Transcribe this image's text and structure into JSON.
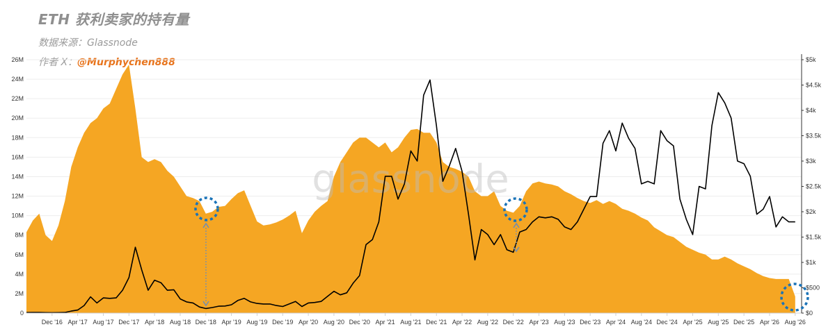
{
  "header": {
    "title": "ETH 获利卖家的持有量",
    "source": "数据来源：Glassnode",
    "author_prefix": "作者 X：",
    "author_handle": "@Murphychen888"
  },
  "watermark": "glassnode",
  "colors": {
    "area": "#f5a623",
    "price_line": "#000000",
    "marker": "#1a73b8",
    "arrow": "#7a8fa8"
  },
  "chart_data": {
    "type": "area",
    "x_ticks": [
      "Dec '16",
      "Apr '17",
      "Aug '17",
      "Dec '17",
      "Apr '18",
      "Aug '18",
      "Dec '18",
      "Apr '19",
      "Aug '19",
      "Dec '19",
      "Apr '20",
      "Aug '20",
      "Dec '20",
      "Apr '21",
      "Aug '21",
      "Dec '21",
      "Apr '22",
      "Aug '22",
      "Dec '22",
      "Apr '23",
      "Aug '23",
      "Dec '23",
      "Apr '24",
      "Aug '24",
      "Dec '24",
      "Apr '25",
      "Aug '25",
      "Dec '25",
      "Apr '26",
      "Aug '26"
    ],
    "y_left_ticks": [
      "0",
      "2M",
      "4M",
      "6M",
      "8M",
      "10M",
      "12M",
      "14M",
      "16M",
      "18M",
      "20M",
      "22M",
      "24M",
      "26M"
    ],
    "y_right_ticks": [
      "$0",
      "$500",
      "$1k",
      "$1.5k",
      "$2k",
      "$2.5k",
      "$3k",
      "$3.5k",
      "$4k",
      "$4.5k",
      "$5k"
    ],
    "ylim_left": [
      0,
      26000000
    ],
    "ylim_right": [
      0,
      5000
    ],
    "series": [
      {
        "kind": "area",
        "axis": "left",
        "points": [
          [
            "2016-08",
            8.3
          ],
          [
            "2016-09",
            9.5
          ],
          [
            "2016-10",
            10.2
          ],
          [
            "2016-11",
            8.0
          ],
          [
            "2016-12",
            7.4
          ],
          [
            "2017-01",
            9.0
          ],
          [
            "2017-02",
            11.5
          ],
          [
            "2017-03",
            15.0
          ],
          [
            "2017-04",
            17.0
          ],
          [
            "2017-05",
            18.5
          ],
          [
            "2017-06",
            19.5
          ],
          [
            "2017-07",
            20.0
          ],
          [
            "2017-08",
            21.0
          ],
          [
            "2017-09",
            21.5
          ],
          [
            "2017-10",
            23.0
          ],
          [
            "2017-11",
            24.5
          ],
          [
            "2017-12",
            25.5
          ],
          [
            "2018-01",
            21.0
          ],
          [
            "2018-02",
            16.0
          ],
          [
            "2018-03",
            15.5
          ],
          [
            "2018-04",
            15.8
          ],
          [
            "2018-05",
            15.5
          ],
          [
            "2018-06",
            14.6
          ],
          [
            "2018-07",
            14.0
          ],
          [
            "2018-08",
            13.0
          ],
          [
            "2018-09",
            12.0
          ],
          [
            "2018-10",
            11.8
          ],
          [
            "2018-11",
            11.5
          ],
          [
            "2018-12",
            10.2
          ],
          [
            "2019-01",
            10.4
          ],
          [
            "2019-02",
            10.9
          ],
          [
            "2019-03",
            11.0
          ],
          [
            "2019-04",
            11.7
          ],
          [
            "2019-05",
            12.3
          ],
          [
            "2019-06",
            12.6
          ],
          [
            "2019-07",
            11.0
          ],
          [
            "2019-08",
            9.4
          ],
          [
            "2019-09",
            9.0
          ],
          [
            "2019-10",
            9.1
          ],
          [
            "2019-11",
            9.3
          ],
          [
            "2019-12",
            9.6
          ],
          [
            "2020-01",
            10.0
          ],
          [
            "2020-02",
            10.5
          ],
          [
            "2020-03",
            8.2
          ],
          [
            "2020-04",
            9.5
          ],
          [
            "2020-05",
            10.4
          ],
          [
            "2020-06",
            11.0
          ],
          [
            "2020-07",
            11.5
          ],
          [
            "2020-08",
            14.0
          ],
          [
            "2020-09",
            15.5
          ],
          [
            "2020-10",
            16.5
          ],
          [
            "2020-11",
            17.5
          ],
          [
            "2020-12",
            18.0
          ],
          [
            "2021-01",
            18.0
          ],
          [
            "2021-02",
            17.5
          ],
          [
            "2021-03",
            17.0
          ],
          [
            "2021-04",
            17.5
          ],
          [
            "2021-05",
            16.5
          ],
          [
            "2021-06",
            17.0
          ],
          [
            "2021-07",
            18.0
          ],
          [
            "2021-08",
            18.8
          ],
          [
            "2021-09",
            18.9
          ],
          [
            "2021-10",
            18.5
          ],
          [
            "2021-11",
            18.5
          ],
          [
            "2021-12",
            17.5
          ],
          [
            "2022-01",
            15.5
          ],
          [
            "2022-02",
            15.0
          ],
          [
            "2022-03",
            14.8
          ],
          [
            "2022-04",
            14.5
          ],
          [
            "2022-05",
            14.0
          ],
          [
            "2022-06",
            12.5
          ],
          [
            "2022-07",
            12.0
          ],
          [
            "2022-08",
            12.0
          ],
          [
            "2022-09",
            12.5
          ],
          [
            "2022-10",
            11.0
          ],
          [
            "2022-11",
            10.5
          ],
          [
            "2022-12",
            10.3
          ],
          [
            "2023-01",
            11.0
          ],
          [
            "2023-02",
            12.5
          ],
          [
            "2023-03",
            13.3
          ],
          [
            "2023-04",
            13.5
          ],
          [
            "2023-05",
            13.3
          ],
          [
            "2023-06",
            13.2
          ],
          [
            "2023-07",
            13.0
          ],
          [
            "2023-08",
            12.5
          ],
          [
            "2023-09",
            12.2
          ],
          [
            "2023-10",
            11.8
          ],
          [
            "2023-11",
            11.5
          ],
          [
            "2023-12",
            11.3
          ],
          [
            "2024-01",
            11.6
          ],
          [
            "2024-02",
            11.2
          ],
          [
            "2024-03",
            11.5
          ],
          [
            "2024-04",
            11.2
          ],
          [
            "2024-05",
            10.7
          ],
          [
            "2024-06",
            10.5
          ],
          [
            "2024-07",
            10.2
          ],
          [
            "2024-08",
            9.8
          ],
          [
            "2024-09",
            9.5
          ],
          [
            "2024-10",
            8.8
          ],
          [
            "2024-11",
            8.4
          ],
          [
            "2024-12",
            8.0
          ],
          [
            "2025-01",
            7.8
          ],
          [
            "2025-02",
            7.3
          ],
          [
            "2025-03",
            6.8
          ],
          [
            "2025-04",
            6.5
          ],
          [
            "2025-05",
            6.2
          ],
          [
            "2025-06",
            6.0
          ],
          [
            "2025-07",
            5.5
          ],
          [
            "2025-08",
            5.5
          ],
          [
            "2025-09",
            5.8
          ],
          [
            "2025-10",
            5.5
          ],
          [
            "2025-11",
            5.1
          ],
          [
            "2025-12",
            4.8
          ],
          [
            "2026-01",
            4.5
          ],
          [
            "2026-02",
            4.1
          ],
          [
            "2026-03",
            3.8
          ],
          [
            "2026-04",
            3.6
          ],
          [
            "2026-05",
            3.5
          ],
          [
            "2026-06",
            3.5
          ],
          [
            "2026-07",
            3.5
          ],
          [
            "2026-08",
            1.7
          ]
        ]
      },
      {
        "kind": "line",
        "axis": "right",
        "points": [
          [
            "2016-08",
            11
          ],
          [
            "2016-09",
            12
          ],
          [
            "2016-10",
            12
          ],
          [
            "2016-11",
            9
          ],
          [
            "2016-12",
            8
          ],
          [
            "2017-01",
            10
          ],
          [
            "2017-02",
            13
          ],
          [
            "2017-03",
            40
          ],
          [
            "2017-04",
            60
          ],
          [
            "2017-05",
            150
          ],
          [
            "2017-06",
            320
          ],
          [
            "2017-07",
            200
          ],
          [
            "2017-08",
            300
          ],
          [
            "2017-09",
            290
          ],
          [
            "2017-10",
            300
          ],
          [
            "2017-11",
            450
          ],
          [
            "2017-12",
            700
          ],
          [
            "2018-01",
            1300
          ],
          [
            "2018-02",
            850
          ],
          [
            "2018-03",
            450
          ],
          [
            "2018-04",
            650
          ],
          [
            "2018-05",
            600
          ],
          [
            "2018-06",
            450
          ],
          [
            "2018-07",
            460
          ],
          [
            "2018-08",
            280
          ],
          [
            "2018-09",
            220
          ],
          [
            "2018-10",
            200
          ],
          [
            "2018-11",
            120
          ],
          [
            "2018-12",
            90
          ],
          [
            "2019-01",
            110
          ],
          [
            "2019-02",
            135
          ],
          [
            "2019-03",
            140
          ],
          [
            "2019-04",
            165
          ],
          [
            "2019-05",
            250
          ],
          [
            "2019-06",
            290
          ],
          [
            "2019-07",
            220
          ],
          [
            "2019-08",
            190
          ],
          [
            "2019-09",
            180
          ],
          [
            "2019-10",
            180
          ],
          [
            "2019-11",
            150
          ],
          [
            "2019-12",
            130
          ],
          [
            "2020-01",
            180
          ],
          [
            "2020-02",
            230
          ],
          [
            "2020-03",
            130
          ],
          [
            "2020-04",
            200
          ],
          [
            "2020-05",
            210
          ],
          [
            "2020-06",
            230
          ],
          [
            "2020-07",
            330
          ],
          [
            "2020-08",
            430
          ],
          [
            "2020-09",
            360
          ],
          [
            "2020-10",
            400
          ],
          [
            "2020-11",
            590
          ],
          [
            "2020-12",
            740
          ],
          [
            "2021-01",
            1350
          ],
          [
            "2021-02",
            1450
          ],
          [
            "2021-03",
            1800
          ],
          [
            "2021-04",
            2700
          ],
          [
            "2021-05",
            2700
          ],
          [
            "2021-06",
            2250
          ],
          [
            "2021-07",
            2550
          ],
          [
            "2021-08",
            3200
          ],
          [
            "2021-09",
            3000
          ],
          [
            "2021-10",
            4300
          ],
          [
            "2021-11",
            4600
          ],
          [
            "2021-12",
            3700
          ],
          [
            "2022-01",
            2600
          ],
          [
            "2022-02",
            2900
          ],
          [
            "2022-03",
            3250
          ],
          [
            "2022-04",
            2800
          ],
          [
            "2022-05",
            1950
          ],
          [
            "2022-06",
            1050
          ],
          [
            "2022-07",
            1650
          ],
          [
            "2022-08",
            1550
          ],
          [
            "2022-09",
            1350
          ],
          [
            "2022-10",
            1550
          ],
          [
            "2022-11",
            1250
          ],
          [
            "2022-12",
            1200
          ],
          [
            "2023-01",
            1600
          ],
          [
            "2023-02",
            1650
          ],
          [
            "2023-03",
            1800
          ],
          [
            "2023-04",
            1900
          ],
          [
            "2023-05",
            1880
          ],
          [
            "2023-06",
            1900
          ],
          [
            "2023-07",
            1850
          ],
          [
            "2023-08",
            1700
          ],
          [
            "2023-09",
            1650
          ],
          [
            "2023-10",
            1800
          ],
          [
            "2023-11",
            2050
          ],
          [
            "2023-12",
            2300
          ],
          [
            "2024-01",
            2300
          ],
          [
            "2024-02",
            3350
          ],
          [
            "2024-03",
            3600
          ],
          [
            "2024-04",
            3200
          ],
          [
            "2024-05",
            3750
          ],
          [
            "2024-06",
            3450
          ],
          [
            "2024-07",
            3250
          ],
          [
            "2024-08",
            2550
          ],
          [
            "2024-09",
            2600
          ],
          [
            "2024-10",
            2550
          ],
          [
            "2024-11",
            3600
          ],
          [
            "2024-12",
            3400
          ],
          [
            "2025-01",
            3300
          ],
          [
            "2025-02",
            2250
          ],
          [
            "2025-03",
            1850
          ],
          [
            "2025-04",
            1550
          ],
          [
            "2025-05",
            2500
          ],
          [
            "2025-06",
            2450
          ],
          [
            "2025-07",
            3700
          ],
          [
            "2025-08",
            4350
          ],
          [
            "2025-09",
            4150
          ],
          [
            "2025-10",
            3850
          ],
          [
            "2025-11",
            3000
          ],
          [
            "2025-12",
            2950
          ],
          [
            "2026-01",
            2700
          ],
          [
            "2026-02",
            1950
          ],
          [
            "2026-03",
            2050
          ],
          [
            "2026-04",
            2300
          ],
          [
            "2026-05",
            1700
          ],
          [
            "2026-06",
            1900
          ],
          [
            "2026-07",
            1800
          ],
          [
            "2026-08",
            1800
          ]
        ]
      }
    ],
    "grid": true
  }
}
